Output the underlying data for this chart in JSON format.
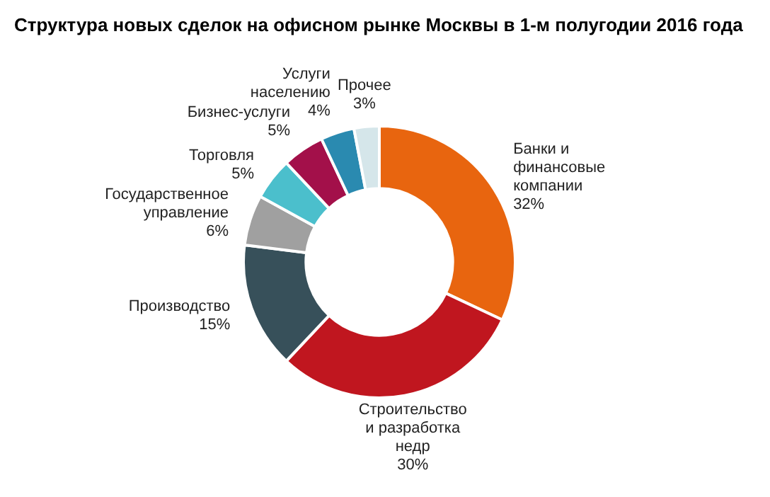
{
  "chart_data": {
    "type": "donut",
    "title": "Структура новых сделок на офисном рынке Москвы в 1-м полугодии 2016 года",
    "categories": [
      "Банки и финансовые компании",
      "Строительство и разработка недр",
      "Производство",
      "Государственное управление",
      "Торговля",
      "Бизнес-услуги",
      "Услуги населению",
      "Прочее"
    ],
    "values": [
      32,
      30,
      15,
      6,
      5,
      5,
      4,
      3
    ],
    "value_labels": [
      "32%",
      "30%",
      "15%",
      "6%",
      "5%",
      "5%",
      "4%",
      "3%"
    ],
    "colors": [
      "#e8650f",
      "#c0161f",
      "#37505a",
      "#a0a0a0",
      "#4bbfcc",
      "#a3104a",
      "#2a8ab0",
      "#d5e6ea"
    ],
    "legend": false
  }
}
